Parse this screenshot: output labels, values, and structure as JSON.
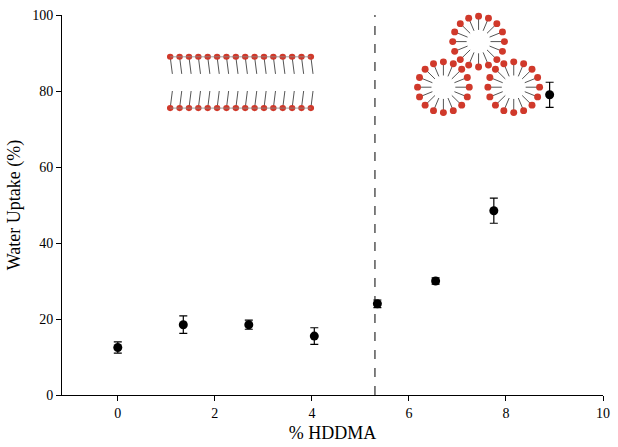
{
  "chart_data": {
    "type": "scatter",
    "x_label": "% HDDMA",
    "y_label": "Water Uptake (%)",
    "x": [
      0,
      1.35,
      2.7,
      4.05,
      5.35,
      6.55,
      7.75,
      8.9
    ],
    "values": [
      12.5,
      18.5,
      18.5,
      15.5,
      24,
      30,
      48.5,
      79
    ],
    "error": [
      1.5,
      2.3,
      1.2,
      2.2,
      1.0,
      0.8,
      3.3,
      3.3
    ],
    "critical_x": 5.3,
    "color": "#000000",
    "marker": "circle",
    "xlim": [
      -1.15,
      10
    ],
    "xticks": [
      0,
      2,
      4,
      6,
      8,
      10
    ],
    "ylim": [
      0,
      100
    ],
    "yticks": [
      0,
      20,
      40,
      60,
      80,
      100
    ],
    "grid": false
  }
}
